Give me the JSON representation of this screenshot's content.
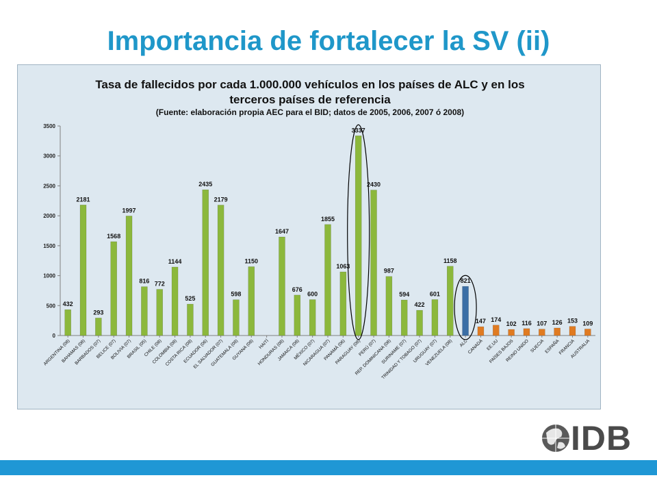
{
  "slide": {
    "title": "Importancia de fortalecer la SV (ii)",
    "logo_text": "IDB",
    "accent_color": "#1f97c9",
    "bar_color": "#1f97d5"
  },
  "chart_data": {
    "type": "bar",
    "title_line1": "Tasa de fallecidos por cada 1.000.000 vehículos en los países de ALC y en los",
    "title_line2": "terceros países de referencia",
    "subtitle": "(Fuente: elaboración propia AEC para el BID; datos de 2005, 2006, 2007 ó 2008)",
    "xlabel": "",
    "ylabel": "",
    "ylim": [
      0,
      3500
    ],
    "yticks": [
      0,
      500,
      1000,
      1500,
      2000,
      2500,
      3000,
      3500
    ],
    "grid": false,
    "categories": [
      "ARGENTINA (08)",
      "BAHAMAS (08)",
      "BARBADOS (07)",
      "BELICE (07)",
      "BOLIVIA (07)",
      "BRASIL (05)",
      "CHILE (08)",
      "COLOMBIA (08)",
      "COSTA RICA (08)",
      "ECUADOR (06)",
      "EL SALVADOR (07)",
      "GUATEMALA (08)",
      "GUYANA (08)",
      "HAITÍ",
      "HONDURAS (08)",
      "JAMAICA (08)",
      "MÉXICO (07)",
      "NICARAGUA (07)",
      "PANAMÁ (06)",
      "PARAGUAY (08)",
      "PERÚ (07)",
      "REP. DOMINICANA (08)",
      "SURINAME (07)",
      "TRINIDAD Y TOBAGO (07)",
      "URUGUAY (07)",
      "VENEZUELA (08)",
      "ALC",
      "CANADÁ",
      "EE.UU",
      "PAÍSES BAJOS",
      "REINO UNIDO",
      "SUECIA",
      "ESPAÑA",
      "FRANCIA",
      "AUSTRALIA"
    ],
    "values": [
      432,
      2181,
      293,
      1568,
      1997,
      816,
      772,
      1144,
      525,
      2435,
      2179,
      598,
      1150,
      null,
      1647,
      676,
      600,
      1855,
      1063,
      3337,
      2430,
      987,
      594,
      422,
      601,
      1158,
      821,
      147,
      174,
      102,
      116,
      107,
      126,
      153,
      109
    ],
    "groups": [
      "lac",
      "lac",
      "lac",
      "lac",
      "lac",
      "lac",
      "lac",
      "lac",
      "lac",
      "lac",
      "lac",
      "lac",
      "lac",
      "lac",
      "lac",
      "lac",
      "lac",
      "lac",
      "lac",
      "lac",
      "lac",
      "lac",
      "lac",
      "lac",
      "lac",
      "lac",
      "alc",
      "ref",
      "ref",
      "ref",
      "ref",
      "ref",
      "ref",
      "ref",
      "ref"
    ],
    "colors": {
      "lac": "#8cb83c",
      "alc": "#3a6ea5",
      "ref": "#e07b22"
    },
    "highlighted": [
      "PARAGUAY (08)",
      "ALC"
    ]
  }
}
